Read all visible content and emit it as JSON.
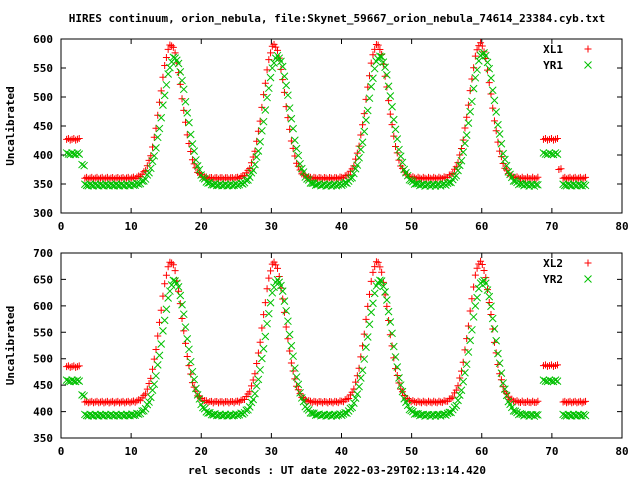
{
  "chart_data": {
    "title": "HIRES continuum, orion_nebula, file:Skynet_59667_orion_nebula_74614_23384.cyb.txt",
    "xlabel": "rel seconds : UT date 2022-03-29T02:13:14.420",
    "colors": {
      "series_a": "#ff0000",
      "series_b": "#00c000"
    },
    "panels": [
      {
        "type": "scatter",
        "ylabel": "Uncalibrated",
        "xlim": [
          0,
          80
        ],
        "ylim": [
          300,
          600
        ],
        "xticks": [
          0,
          10,
          20,
          30,
          40,
          50,
          60,
          70,
          80
        ],
        "yticks": [
          300,
          350,
          400,
          450,
          500,
          550,
          600
        ],
        "legend": "top-right",
        "series": [
          {
            "name": "XL1",
            "marker": "plus",
            "segments": [
              {
                "x_start": 0.8,
                "x_end": 2.6,
                "n": 8,
                "base": 427
              },
              {
                "x_start": 3.4,
                "x_end": 68.0,
                "n": 262,
                "base": 360,
                "peaks": [
                  {
                    "center": 15.7,
                    "height": 230,
                    "width": 1.55
                  },
                  {
                    "center": 30.4,
                    "height": 230,
                    "width": 1.55
                  },
                  {
                    "center": 45.1,
                    "height": 230,
                    "width": 1.55
                  },
                  {
                    "center": 59.8,
                    "height": 232,
                    "width": 1.55
                  }
                ]
              },
              {
                "x_start": 68.8,
                "x_end": 70.8,
                "n": 8,
                "base": 427
              },
              {
                "x_start": 71.0,
                "x_end": 71.3,
                "n": 2,
                "base": 375
              },
              {
                "x_start": 71.6,
                "x_end": 74.8,
                "n": 14,
                "base": 360
              }
            ]
          },
          {
            "name": "YR1",
            "marker": "cross",
            "segments": [
              {
                "x_start": 0.8,
                "x_end": 2.6,
                "n": 8,
                "base": 402
              },
              {
                "x_start": 3.0,
                "x_end": 3.3,
                "n": 2,
                "base": 382
              },
              {
                "x_start": 3.4,
                "x_end": 68.0,
                "n": 262,
                "base": 348,
                "peaks": [
                  {
                    "center": 16.2,
                    "height": 220,
                    "width": 1.7
                  },
                  {
                    "center": 30.9,
                    "height": 222,
                    "width": 1.7
                  },
                  {
                    "center": 45.5,
                    "height": 222,
                    "width": 1.7
                  },
                  {
                    "center": 60.2,
                    "height": 228,
                    "width": 1.7
                  }
                ]
              },
              {
                "x_start": 68.8,
                "x_end": 70.8,
                "n": 8,
                "base": 402
              },
              {
                "x_start": 71.6,
                "x_end": 74.8,
                "n": 14,
                "base": 348
              }
            ]
          }
        ]
      },
      {
        "type": "scatter",
        "ylabel": "Uncalibrated",
        "xlim": [
          0,
          80
        ],
        "ylim": [
          350,
          700
        ],
        "xticks": [
          0,
          10,
          20,
          30,
          40,
          50,
          60,
          70,
          80
        ],
        "yticks": [
          350,
          400,
          450,
          500,
          550,
          600,
          650,
          700
        ],
        "legend": "top-right",
        "series": [
          {
            "name": "XL2",
            "marker": "plus",
            "segments": [
              {
                "x_start": 0.8,
                "x_end": 2.6,
                "n": 8,
                "base": 485
              },
              {
                "x_start": 3.4,
                "x_end": 68.0,
                "n": 262,
                "base": 418,
                "peaks": [
                  {
                    "center": 15.7,
                    "height": 265,
                    "width": 1.55
                  },
                  {
                    "center": 30.4,
                    "height": 264,
                    "width": 1.55
                  },
                  {
                    "center": 45.1,
                    "height": 265,
                    "width": 1.55
                  },
                  {
                    "center": 59.8,
                    "height": 265,
                    "width": 1.55
                  }
                ]
              },
              {
                "x_start": 68.8,
                "x_end": 70.8,
                "n": 8,
                "base": 487
              },
              {
                "x_start": 71.6,
                "x_end": 74.8,
                "n": 14,
                "base": 418
              }
            ]
          },
          {
            "name": "YR2",
            "marker": "cross",
            "segments": [
              {
                "x_start": 0.8,
                "x_end": 2.6,
                "n": 8,
                "base": 458
              },
              {
                "x_start": 3.0,
                "x_end": 3.3,
                "n": 2,
                "base": 430
              },
              {
                "x_start": 3.4,
                "x_end": 68.0,
                "n": 262,
                "base": 393,
                "peaks": [
                  {
                    "center": 16.2,
                    "height": 255,
                    "width": 1.7
                  },
                  {
                    "center": 30.9,
                    "height": 255,
                    "width": 1.7
                  },
                  {
                    "center": 45.5,
                    "height": 255,
                    "width": 1.7
                  },
                  {
                    "center": 60.2,
                    "height": 255,
                    "width": 1.7
                  }
                ]
              },
              {
                "x_start": 68.8,
                "x_end": 70.8,
                "n": 8,
                "base": 458
              },
              {
                "x_start": 71.6,
                "x_end": 74.8,
                "n": 14,
                "base": 393
              }
            ]
          }
        ]
      }
    ]
  }
}
